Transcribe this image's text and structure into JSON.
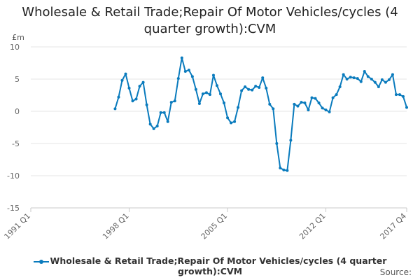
{
  "chart_data": {
    "type": "line",
    "title": "Wholesale & Retail Trade;Repair Of Motor Vehicles/cycles (4 quarter growth):CVM",
    "unit_label": "£m",
    "x_tick_labels": [
      "1991 Q1",
      "1998 Q1",
      "2005 Q1",
      "2012 Q1",
      "2017 Q4"
    ],
    "ylim": [
      -15,
      10
    ],
    "y_ticks": [
      10,
      5,
      0,
      -5,
      -10,
      -15
    ],
    "grid": true,
    "legend_position": "bottom",
    "series": [
      {
        "name": "Wholesale & Retail Trade;Repair Of Motor Vehicles/cycles (4 quarter growth):CVM",
        "color": "#0a7bbd",
        "start_period": "1997 Q1",
        "values": [
          0.4,
          2.2,
          4.8,
          5.8,
          3.6,
          1.6,
          1.9,
          3.9,
          4.5,
          1.0,
          -2.0,
          -2.7,
          -2.3,
          -0.2,
          -0.2,
          -1.6,
          1.4,
          1.6,
          5.1,
          8.3,
          6.2,
          6.4,
          5.4,
          3.4,
          1.2,
          2.7,
          2.9,
          2.6,
          5.6,
          4.0,
          2.7,
          1.3,
          -1.0,
          -1.8,
          -1.6,
          0.6,
          3.2,
          3.8,
          3.4,
          3.3,
          3.9,
          3.7,
          5.2,
          3.6,
          1.1,
          0.4,
          -5.0,
          -8.8,
          -9.1,
          -9.2,
          -4.5,
          1.1,
          0.8,
          1.4,
          1.3,
          0.2,
          2.1,
          2.0,
          1.3,
          0.5,
          0.2,
          -0.1,
          2.1,
          2.6,
          3.8,
          5.7,
          5.0,
          5.3,
          5.2,
          5.1,
          4.6,
          6.2,
          5.4,
          5.0,
          4.5,
          3.8,
          4.9,
          4.5,
          4.9,
          5.7,
          2.6,
          2.6,
          2.3,
          0.6
        ]
      }
    ]
  },
  "source_label": "Source:"
}
